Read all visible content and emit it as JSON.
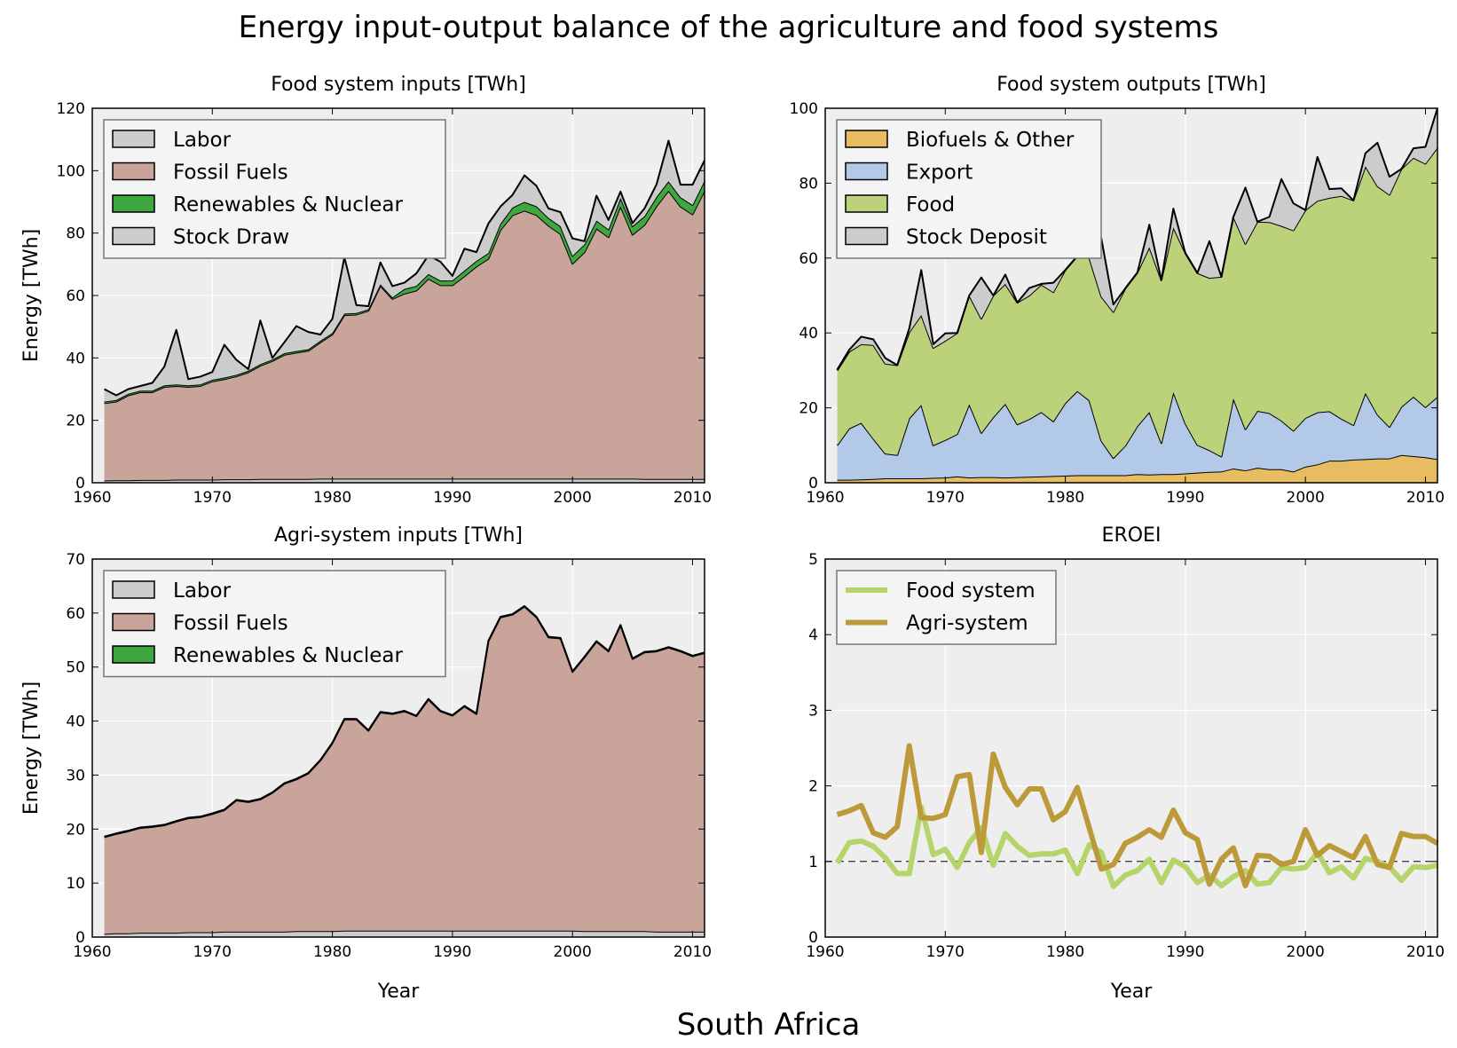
{
  "figure": {
    "title": "Energy input-output balance of the agriculture and food systems",
    "country": "South Africa"
  },
  "colors": {
    "labor": "#cccccc",
    "fossil": "#c8a49b",
    "renewables": "#3ea83e",
    "stock": "#cccccc",
    "biofuels": "#e8bc60",
    "export": "#b3c9e8",
    "food": "#bbd27a",
    "stock_deposit": "#cccccc",
    "eroei_food": "#b5d46a",
    "eroei_agri": "#bc9a3a",
    "plot_bg": "#eeeeee"
  },
  "chart_data": [
    {
      "id": "food_inputs",
      "type": "area",
      "title": "Food system inputs [TWh]",
      "ylabel": "Energy [TWh]",
      "xlabel": "",
      "xlim": [
        1960,
        2011
      ],
      "ylim": [
        0,
        120
      ],
      "xticks": [
        "1960",
        "1970",
        "1980",
        "1990",
        "2000",
        "2010"
      ],
      "yticks": [
        "0",
        "20",
        "40",
        "60",
        "80",
        "100",
        "120"
      ],
      "grid": true,
      "legend": "top-left",
      "x": [
        1961,
        1962,
        1963,
        1964,
        1965,
        1966,
        1967,
        1968,
        1969,
        1970,
        1971,
        1972,
        1973,
        1974,
        1975,
        1976,
        1977,
        1978,
        1979,
        1980,
        1981,
        1982,
        1983,
        1984,
        1985,
        1986,
        1987,
        1988,
        1989,
        1990,
        1991,
        1992,
        1993,
        1994,
        1995,
        1996,
        1997,
        1998,
        1999,
        2000,
        2001,
        2002,
        2003,
        2004,
        2005,
        2006,
        2007,
        2008,
        2009,
        2010,
        2011
      ],
      "series": [
        {
          "name": "Labor",
          "key": "labor",
          "values": [
            0.7,
            0.8,
            0.8,
            0.9,
            0.9,
            0.9,
            1.0,
            1.0,
            1.0,
            1.0,
            1.1,
            1.1,
            1.1,
            1.2,
            1.2,
            1.2,
            1.2,
            1.2,
            1.3,
            1.3,
            1.3,
            1.3,
            1.3,
            1.3,
            1.3,
            1.3,
            1.3,
            1.3,
            1.3,
            1.3,
            1.3,
            1.3,
            1.3,
            1.3,
            1.3,
            1.3,
            1.3,
            1.3,
            1.3,
            1.3,
            1.3,
            1.3,
            1.3,
            1.3,
            1.3,
            1.2,
            1.2,
            1.2,
            1.2,
            1.2,
            1.2
          ]
        },
        {
          "name": "Fossil Fuels",
          "key": "fossil",
          "values": [
            24.8,
            25.2,
            27.2,
            28.1,
            28.1,
            29.8,
            30.0,
            29.7,
            30.0,
            31.5,
            32.1,
            33.0,
            34.3,
            36.3,
            37.8,
            39.8,
            40.5,
            41.1,
            43.7,
            46.2,
            52.4,
            52.6,
            53.8,
            61.8,
            57.6,
            59.3,
            60.3,
            64.1,
            62.0,
            62.0,
            64.9,
            68.0,
            70.5,
            79.7,
            84.4,
            85.9,
            84.5,
            81.1,
            78.4,
            68.9,
            72.6,
            80.2,
            77.4,
            87.3,
            78.2,
            81.4,
            87.4,
            92.4,
            87.3,
            84.8,
            92.4
          ]
        },
        {
          "name": "Renewables & Nuclear",
          "key": "renewables",
          "values": [
            0.5,
            0.5,
            0.5,
            0.5,
            0.5,
            0.5,
            0.5,
            0.5,
            0.5,
            0.5,
            0.5,
            0.5,
            0.5,
            0.5,
            0.5,
            0.5,
            0.5,
            0.5,
            0.5,
            0.5,
            0.5,
            0.5,
            0.5,
            0.5,
            0.5,
            1.5,
            1.5,
            1.5,
            1.5,
            1.5,
            1.8,
            1.8,
            1.8,
            2.0,
            2.5,
            2.8,
            2.8,
            2.5,
            2.5,
            2.5,
            2.5,
            2.5,
            2.5,
            2.7,
            2.7,
            2.8,
            3.0,
            3.0,
            3.0,
            3.0,
            3.2
          ]
        },
        {
          "name": "Stock Draw",
          "key": "stock",
          "values": [
            4.0,
            1.5,
            1.5,
            1.5,
            2.5,
            6.0,
            17.5,
            2.0,
            2.5,
            2.5,
            10.5,
            4.8,
            0.5,
            14.0,
            0.5,
            3.5,
            8.0,
            5.5,
            2.0,
            4.5,
            18.0,
            2.5,
            1.0,
            7.0,
            3.6,
            2.0,
            4.0,
            6.0,
            6.0,
            1.5,
            7.0,
            2.8,
            9.5,
            5.5,
            4.0,
            8.5,
            6.5,
            3.0,
            4.5,
            5.6,
            1.0,
            8.0,
            3.0,
            2.0,
            1.0,
            2.5,
            4.0,
            13.0,
            4.0,
            6.5,
            6.5
          ]
        }
      ]
    },
    {
      "id": "food_outputs",
      "type": "area",
      "title": "Food system outputs [TWh]",
      "ylabel": "",
      "xlabel": "",
      "xlim": [
        1960,
        2011
      ],
      "ylim": [
        0,
        100
      ],
      "xticks": [
        "1960",
        "1970",
        "1980",
        "1990",
        "2000",
        "2010"
      ],
      "yticks": [
        "0",
        "20",
        "40",
        "60",
        "80",
        "100"
      ],
      "grid": true,
      "legend": "top-left",
      "x": [
        1961,
        1962,
        1963,
        1964,
        1965,
        1966,
        1967,
        1968,
        1969,
        1970,
        1971,
        1972,
        1973,
        1974,
        1975,
        1976,
        1977,
        1978,
        1979,
        1980,
        1981,
        1982,
        1983,
        1984,
        1985,
        1986,
        1987,
        1988,
        1989,
        1990,
        1991,
        1992,
        1993,
        1994,
        1995,
        1996,
        1997,
        1998,
        1999,
        2000,
        2001,
        2002,
        2003,
        2004,
        2005,
        2006,
        2007,
        2008,
        2009,
        2010,
        2011
      ],
      "series": [
        {
          "name": "Biofuels & Other",
          "key": "biofuels",
          "values": [
            0.8,
            0.8,
            0.9,
            1.0,
            1.2,
            1.2,
            1.2,
            1.2,
            1.3,
            1.4,
            1.7,
            1.4,
            1.5,
            1.5,
            1.4,
            1.5,
            1.6,
            1.7,
            1.8,
            1.9,
            2.0,
            2.0,
            2.0,
            2.0,
            2.0,
            2.3,
            2.2,
            2.3,
            2.3,
            2.5,
            2.7,
            2.9,
            3.0,
            3.8,
            3.3,
            4.0,
            3.6,
            3.6,
            3.0,
            4.3,
            4.9,
            5.9,
            5.9,
            6.2,
            6.3,
            6.5,
            6.5,
            7.4,
            7.1,
            6.8,
            6.3
          ]
        },
        {
          "name": "Export",
          "key": "export",
          "values": [
            9.2,
            13.7,
            15.1,
            10.8,
            6.6,
            6.2,
            16.0,
            19.6,
            8.7,
            10.0,
            11.3,
            19.6,
            11.8,
            16.0,
            19.7,
            14.1,
            15.4,
            17.2,
            14.6,
            19.4,
            22.5,
            20.0,
            9.2,
            4.6,
            7.9,
            12.8,
            16.7,
            8.3,
            21.9,
            13.3,
            7.4,
            5.8,
            4.0,
            18.7,
            11.0,
            15.2,
            15.0,
            13.0,
            10.9,
            13.0,
            13.9,
            13.2,
            11.2,
            9.2,
            17.7,
            11.7,
            8.4,
            12.9,
            15.9,
            13.4,
            16.7
          ]
        },
        {
          "name": "Food",
          "key": "food",
          "values": [
            20.0,
            20.5,
            21.0,
            25.0,
            24.0,
            24.0,
            23.0,
            24.0,
            26.0,
            26.5,
            27.0,
            29.0,
            30.5,
            32.5,
            32.0,
            32.5,
            33.0,
            34.0,
            34.5,
            35.5,
            36.0,
            38.0,
            38.5,
            39.0,
            42.0,
            41.0,
            44.0,
            43.5,
            44.0,
            45.5,
            45.9,
            46.0,
            48.0,
            48.5,
            49.5,
            50.5,
            51.0,
            52.0,
            53.5,
            55.5,
            56.5,
            57.0,
            59.5,
            60.0,
            60.5,
            61.0,
            62.0,
            63.5,
            63.8,
            65.0,
            66.5
          ]
        },
        {
          "name": "Stock Deposit",
          "key": "stock_deposit",
          "values": [
            0.2,
            0.5,
            2.0,
            1.5,
            1.5,
            0.0,
            1.0,
            12.0,
            1.0,
            2.0,
            0.0,
            0.0,
            11.0,
            0.0,
            2.5,
            0.0,
            2.0,
            0.2,
            2.5,
            0.0,
            0.0,
            10.0,
            15.5,
            2.0,
            0.0,
            0.0,
            6.0,
            0.0,
            5.0,
            0.0,
            0.0,
            9.8,
            0.0,
            0.0,
            15.0,
            0.0,
            1.4,
            12.5,
            7.2,
            0.0,
            11.7,
            2.3,
            2.0,
            0.0,
            3.5,
            11.6,
            4.8,
            0.0,
            2.5,
            4.5,
            10.5
          ]
        }
      ]
    },
    {
      "id": "agri_inputs",
      "type": "area",
      "title": "Agri-system inputs [TWh]",
      "ylabel": "Energy [TWh]",
      "xlabel": "Year",
      "xlim": [
        1960,
        2011
      ],
      "ylim": [
        0,
        70
      ],
      "xticks": [
        "1960",
        "1970",
        "1980",
        "1990",
        "2000",
        "2010"
      ],
      "yticks": [
        "0",
        "10",
        "20",
        "30",
        "40",
        "50",
        "60",
        "70"
      ],
      "grid": true,
      "legend": "top-left",
      "x": [
        1961,
        1962,
        1963,
        1964,
        1965,
        1966,
        1967,
        1968,
        1969,
        1970,
        1971,
        1972,
        1973,
        1974,
        1975,
        1976,
        1977,
        1978,
        1979,
        1980,
        1981,
        1982,
        1983,
        1984,
        1985,
        1986,
        1987,
        1988,
        1989,
        1990,
        1991,
        1992,
        1993,
        1994,
        1995,
        1996,
        1997,
        1998,
        1999,
        2000,
        2001,
        2002,
        2003,
        2004,
        2005,
        2006,
        2007,
        2008,
        2009,
        2010,
        2011
      ],
      "series": [
        {
          "name": "Labor",
          "key": "labor",
          "values": [
            0.6,
            0.7,
            0.7,
            0.8,
            0.8,
            0.8,
            0.8,
            0.9,
            0.9,
            0.9,
            1.0,
            1.0,
            1.0,
            1.0,
            1.0,
            1.0,
            1.1,
            1.1,
            1.1,
            1.1,
            1.2,
            1.2,
            1.2,
            1.2,
            1.2,
            1.2,
            1.2,
            1.2,
            1.2,
            1.2,
            1.2,
            1.2,
            1.2,
            1.2,
            1.2,
            1.2,
            1.2,
            1.2,
            1.2,
            1.2,
            1.1,
            1.1,
            1.1,
            1.1,
            1.1,
            1.1,
            1.0,
            1.0,
            1.0,
            1.0,
            1.0
          ]
        },
        {
          "name": "Fossil Fuels",
          "key": "fossil",
          "values": [
            17.9,
            18.4,
            18.9,
            19.4,
            19.6,
            19.9,
            20.6,
            21.1,
            21.3,
            21.9,
            22.5,
            24.3,
            24.0,
            24.5,
            25.7,
            27.4,
            28.1,
            29.2,
            31.6,
            34.8,
            39.1,
            39.1,
            37.0,
            40.4,
            40.1,
            40.6,
            39.7,
            42.8,
            40.6,
            39.8,
            41.5,
            40.1,
            53.6,
            58.0,
            58.5,
            60.0,
            58.0,
            54.3,
            54.1,
            47.9,
            50.7,
            53.6,
            51.8,
            56.6,
            50.4,
            51.6,
            51.9,
            52.6,
            51.9,
            51.0,
            51.6
          ]
        },
        {
          "name": "Renewables & Nuclear",
          "key": "renewables",
          "values": [
            0.1,
            0.1,
            0.1,
            0.1,
            0.1,
            0.1,
            0.1,
            0.1,
            0.1,
            0.1,
            0.1,
            0.1,
            0.1,
            0.1,
            0.1,
            0.1,
            0.1,
            0.1,
            0.1,
            0.1,
            0.1,
            0.1,
            0.1,
            0.1,
            0.1,
            0.1,
            0.1,
            0.1,
            0.1,
            0.1,
            0.1,
            0.1,
            0.1,
            0.1,
            0.1,
            0.1,
            0.1,
            0.1,
            0.1,
            0.1,
            0.1,
            0.1,
            0.1,
            0.1,
            0.1,
            0.1,
            0.1,
            0.1,
            0.1,
            0.1,
            0.1
          ]
        }
      ]
    },
    {
      "id": "eroei",
      "type": "line",
      "title": "EROEI",
      "ylabel": "",
      "xlabel": "Year",
      "xlim": [
        1960,
        2011
      ],
      "ylim": [
        0,
        5
      ],
      "xticks": [
        "1960",
        "1970",
        "1980",
        "1990",
        "2000",
        "2010"
      ],
      "yticks": [
        "0",
        "1",
        "2",
        "3",
        "4",
        "5"
      ],
      "grid": true,
      "legend": "top-left",
      "reference_line": 1,
      "x": [
        1961,
        1962,
        1963,
        1964,
        1965,
        1966,
        1967,
        1968,
        1969,
        1970,
        1971,
        1972,
        1973,
        1974,
        1975,
        1976,
        1977,
        1978,
        1979,
        1980,
        1981,
        1982,
        1983,
        1984,
        1985,
        1986,
        1987,
        1988,
        1989,
        1990,
        1991,
        1992,
        1993,
        1994,
        1995,
        1996,
        1997,
        1998,
        1999,
        2000,
        2001,
        2002,
        2003,
        2004,
        2005,
        2006,
        2007,
        2008,
        2009,
        2010,
        2011
      ],
      "series": [
        {
          "name": "Food system",
          "key": "eroei_food",
          "values": [
            0.98,
            1.25,
            1.27,
            1.2,
            1.05,
            0.84,
            0.84,
            1.72,
            1.09,
            1.16,
            0.92,
            1.25,
            1.45,
            0.95,
            1.37,
            1.2,
            1.08,
            1.1,
            1.1,
            1.15,
            0.84,
            1.22,
            1.12,
            0.67,
            0.82,
            0.88,
            1.03,
            0.72,
            1.02,
            0.93,
            0.72,
            0.82,
            0.68,
            0.8,
            0.88,
            0.7,
            0.72,
            0.92,
            0.9,
            0.92,
            1.12,
            0.85,
            0.93,
            0.78,
            1.04,
            1.0,
            0.93,
            0.75,
            0.93,
            0.92,
            0.95
          ]
        },
        {
          "name": "Agri-system",
          "key": "eroei_agri",
          "values": [
            1.62,
            1.67,
            1.74,
            1.38,
            1.32,
            1.46,
            2.53,
            1.58,
            1.57,
            1.62,
            2.12,
            2.15,
            1.12,
            2.42,
            1.98,
            1.75,
            1.96,
            1.96,
            1.55,
            1.66,
            1.98,
            1.44,
            0.9,
            0.96,
            1.24,
            1.32,
            1.42,
            1.32,
            1.68,
            1.38,
            1.29,
            0.7,
            1.03,
            1.18,
            0.68,
            1.08,
            1.07,
            0.96,
            1.0,
            1.42,
            1.08,
            1.21,
            1.13,
            1.05,
            1.33,
            0.96,
            0.92,
            1.37,
            1.33,
            1.33,
            1.24
          ]
        }
      ]
    }
  ]
}
